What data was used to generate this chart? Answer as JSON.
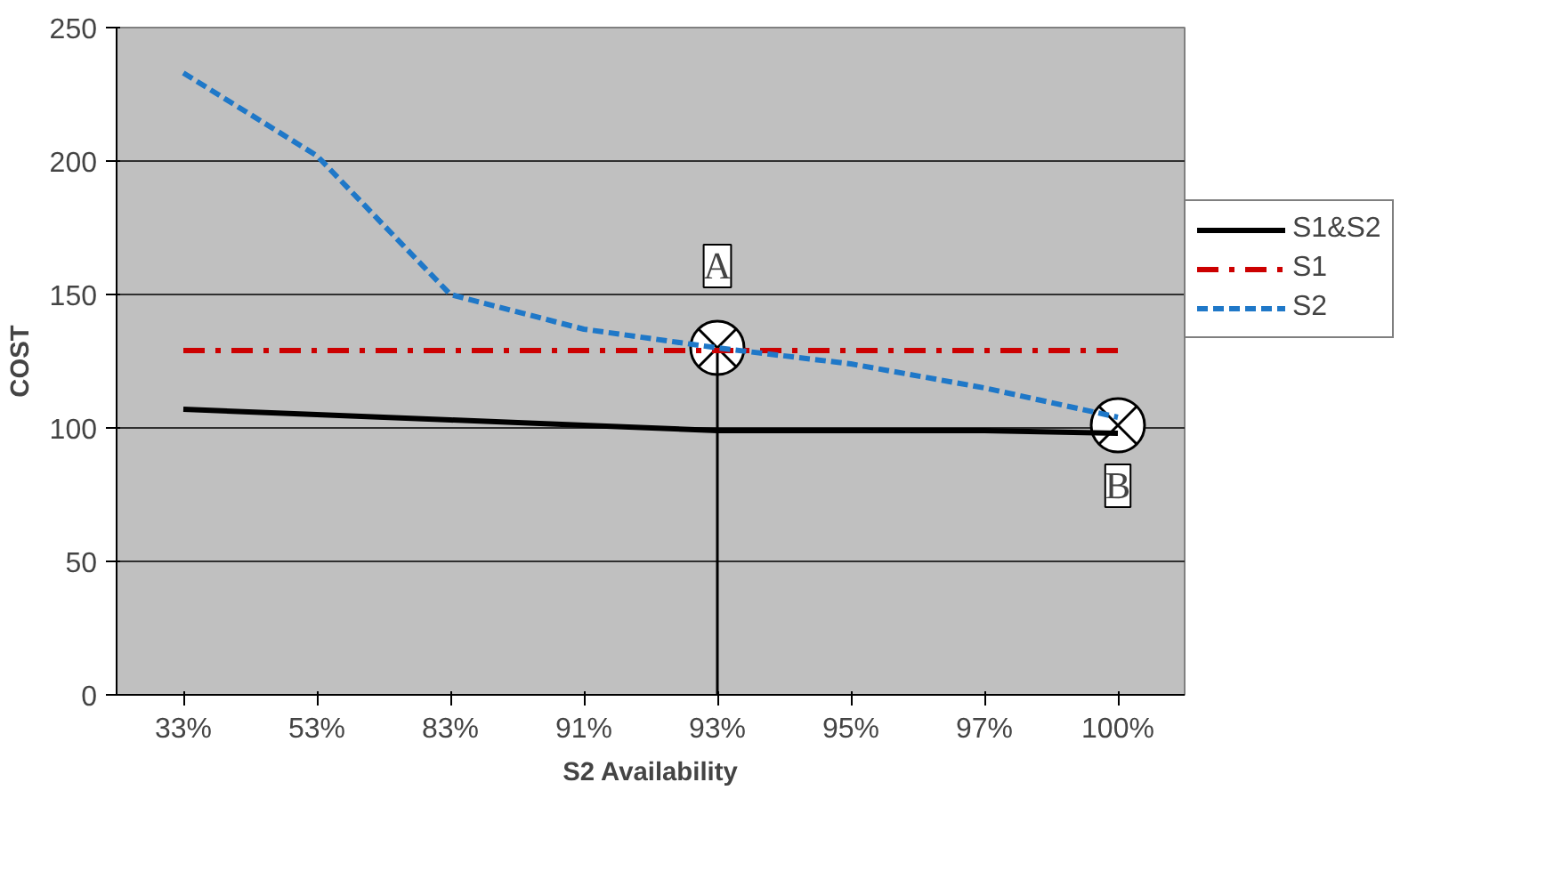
{
  "chart_data": {
    "type": "line",
    "xlabel": "S2 Availability",
    "ylabel": "COST",
    "categories": [
      "33%",
      "53%",
      "83%",
      "91%",
      "93%",
      "95%",
      "97%",
      "100%"
    ],
    "series": [
      {
        "name": "S1&S2",
        "color": "#000000",
        "line_style": "solid",
        "values": [
          107,
          105,
          103,
          101,
          99,
          99,
          99,
          98
        ]
      },
      {
        "name": "S1",
        "color": "#cc0000",
        "line_style": "dashdot",
        "values": [
          129,
          129,
          129,
          129,
          129,
          129,
          129,
          129
        ]
      },
      {
        "name": "S2",
        "color": "#1f78c8",
        "line_style": "dashed",
        "values": [
          233,
          202,
          150,
          137,
          130,
          124,
          115,
          104
        ]
      }
    ],
    "ylim": [
      0,
      250
    ],
    "yticks": [
      0,
      50,
      100,
      150,
      200,
      250
    ],
    "grid": "y",
    "legend": "right",
    "marker": "none",
    "ref_lines": [
      {
        "axis": "x",
        "value": "93%"
      }
    ],
    "annotations": [
      {
        "text": "A",
        "x": "93%",
        "y": 130
      },
      {
        "text": "B",
        "x": "100%",
        "y": 101
      }
    ]
  }
}
